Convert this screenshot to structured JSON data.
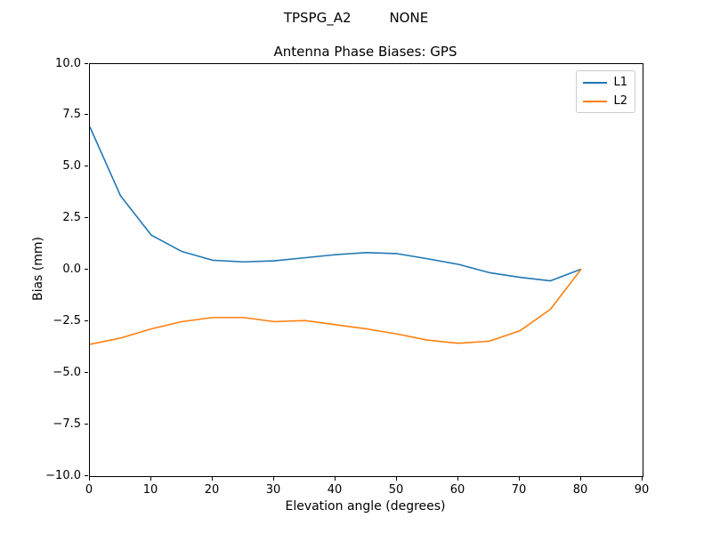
{
  "suptitle": "TPSPG_A2         NONE",
  "chart_data": {
    "type": "line",
    "title": "Antenna Phase Biases: GPS",
    "xlabel": "Elevation angle (degrees)",
    "ylabel": "Bias (mm)",
    "xlim": [
      0,
      90
    ],
    "ylim": [
      -10,
      10
    ],
    "grid": false,
    "legend_position": "upper right",
    "xticks": [
      0,
      10,
      20,
      30,
      40,
      50,
      60,
      70,
      80,
      90
    ],
    "xtick_labels": [
      "0",
      "10",
      "20",
      "30",
      "40",
      "50",
      "60",
      "70",
      "80",
      "90"
    ],
    "yticks": [
      10,
      7.5,
      5,
      2.5,
      0,
      -2.5,
      -5,
      -7.5,
      -10
    ],
    "ytick_labels": [
      "10.0",
      "7.5",
      "5.0",
      "2.5",
      "0.0",
      "−2.5",
      "−5.0",
      "−7.5",
      "−10.0"
    ],
    "x": [
      0,
      5,
      10,
      15,
      20,
      25,
      30,
      35,
      40,
      45,
      50,
      55,
      60,
      65,
      70,
      75,
      80
    ],
    "series": [
      {
        "name": "L1",
        "color": "#1f77b4",
        "values": [
          6.95,
          3.6,
          1.7,
          0.9,
          0.48,
          0.4,
          0.45,
          0.6,
          0.75,
          0.85,
          0.8,
          0.55,
          0.28,
          -0.12,
          -0.35,
          -0.52,
          0.05
        ]
      },
      {
        "name": "L2",
        "color": "#ff7f0e",
        "values": [
          -3.6,
          -3.3,
          -2.85,
          -2.5,
          -2.3,
          -2.3,
          -2.5,
          -2.45,
          -2.65,
          -2.85,
          -3.1,
          -3.4,
          -3.55,
          -3.45,
          -2.95,
          -1.9,
          0.05
        ]
      }
    ],
    "line_width": 1.6
  },
  "colors": {
    "spine": "#000000",
    "background": "#ffffff",
    "legend_border": "#cccccc"
  }
}
